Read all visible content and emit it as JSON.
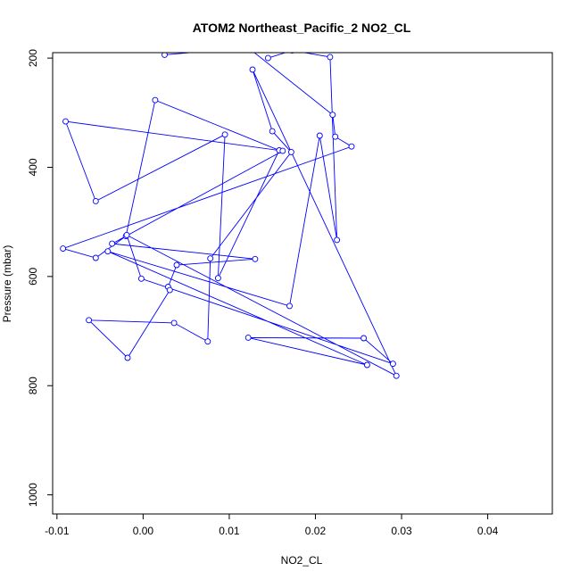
{
  "chart_data": {
    "type": "line",
    "title": "ATOM2 Northeast_Pacific_2 NO2_CL",
    "xlabel": "NO2_CL",
    "ylabel": "Pressure (mbar)",
    "xlim": [
      -0.0105,
      0.0475
    ],
    "ylim": [
      1035,
      190
    ],
    "y_reversed": true,
    "grid": false,
    "legend": "none",
    "markers": "open-circle",
    "x_ticks": [
      -0.01,
      0.0,
      0.01,
      0.02,
      0.03,
      0.04
    ],
    "x_tick_labels": [
      "-0.01",
      "0.00",
      "0.01",
      "0.02",
      "0.03",
      "0.04"
    ],
    "y_ticks": [
      200,
      400,
      600,
      800,
      1000
    ],
    "y_tick_labels": [
      "200",
      "400",
      "600",
      "800",
      "1000"
    ],
    "colors": {
      "series": "#0000ff",
      "axis": "#000000"
    },
    "series": [
      {
        "x": [
          0.0025,
          0.0122,
          0.022,
          0.0223,
          0.0242,
          -0.0093,
          -0.0055,
          -0.002,
          0.0014,
          0.0158,
          0.0087,
          0.0095,
          -0.0055,
          -0.009,
          0.0162,
          -0.0036,
          0.013,
          0.0039,
          0.0029,
          0.0031,
          -0.0018,
          -0.0063,
          0.0036,
          0.0075,
          0.0078,
          0.0172,
          0.015,
          0.0127,
          0.0294,
          -0.0019,
          -0.0002,
          0.029,
          0.0256,
          0.0122,
          0.026,
          -0.0041,
          0.017,
          0.0205,
          0.0225,
          0.0217,
          0.0173,
          0.0145
        ],
        "y": [
          194,
          181,
          304,
          344,
          362,
          549,
          566,
          526,
          277,
          369,
          603,
          340,
          462,
          316,
          370,
          540,
          568,
          579,
          619,
          625,
          749,
          680,
          685,
          719,
          567,
          372,
          334,
          221,
          782,
          524,
          604,
          760,
          713,
          712,
          762,
          554,
          654,
          342,
          533,
          198,
          186,
          200
        ]
      }
    ]
  }
}
